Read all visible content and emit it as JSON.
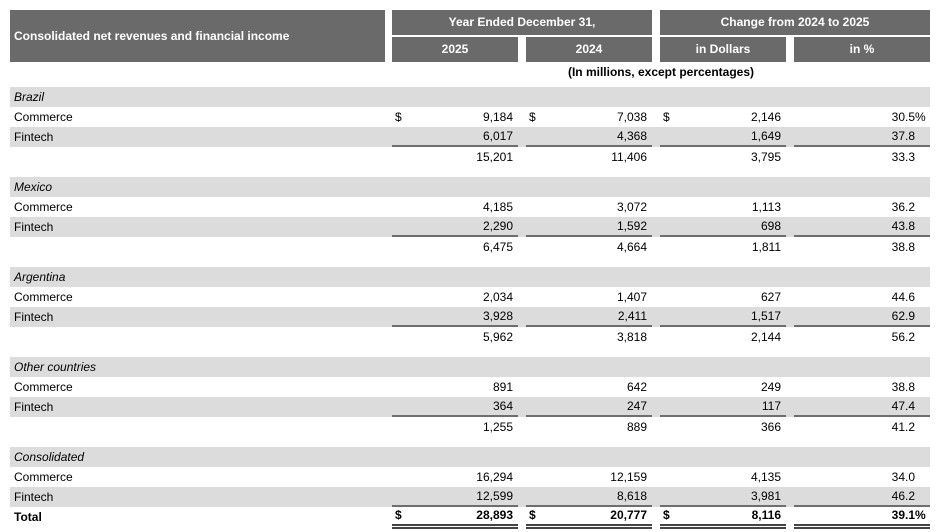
{
  "table": {
    "title": "Consolidated net revenues and financial income",
    "subtitle": "(In millions, except percentages)",
    "col_groups": [
      {
        "label": "Year Ended December 31,",
        "cols": [
          "2025",
          "2024"
        ]
      },
      {
        "label": "Change from 2024 to 2025",
        "cols": [
          "in Dollars",
          "in %"
        ]
      }
    ],
    "sections": [
      {
        "name": "Brazil",
        "rows": [
          {
            "label": "Commerce",
            "cur": "$",
            "v2025": "9,184",
            "v2024": "7,038",
            "chg": "2,146",
            "pct": "30.5",
            "pctsign": "%"
          },
          {
            "label": "Fintech",
            "v2025": "6,017",
            "v2024": "4,368",
            "chg": "1,649",
            "pct": "37.8"
          }
        ],
        "subtotal": {
          "v2025": "15,201",
          "v2024": "11,406",
          "chg": "3,795",
          "pct": "33.3"
        }
      },
      {
        "name": "Mexico",
        "rows": [
          {
            "label": "Commerce",
            "v2025": "4,185",
            "v2024": "3,072",
            "chg": "1,113",
            "pct": "36.2"
          },
          {
            "label": "Fintech",
            "v2025": "2,290",
            "v2024": "1,592",
            "chg": "698",
            "pct": "43.8"
          }
        ],
        "subtotal": {
          "v2025": "6,475",
          "v2024": "4,664",
          "chg": "1,811",
          "pct": "38.8"
        }
      },
      {
        "name": "Argentina",
        "rows": [
          {
            "label": "Commerce",
            "v2025": "2,034",
            "v2024": "1,407",
            "chg": "627",
            "pct": "44.6"
          },
          {
            "label": "Fintech",
            "v2025": "3,928",
            "v2024": "2,411",
            "chg": "1,517",
            "pct": "62.9"
          }
        ],
        "subtotal": {
          "v2025": "5,962",
          "v2024": "3,818",
          "chg": "2,144",
          "pct": "56.2"
        }
      },
      {
        "name": "Other countries",
        "rows": [
          {
            "label": "Commerce",
            "v2025": "891",
            "v2024": "642",
            "chg": "249",
            "pct": "38.8"
          },
          {
            "label": "Fintech",
            "v2025": "364",
            "v2024": "247",
            "chg": "117",
            "pct": "47.4"
          }
        ],
        "subtotal": {
          "v2025": "1,255",
          "v2024": "889",
          "chg": "366",
          "pct": "41.2"
        }
      },
      {
        "name": "Consolidated",
        "rows": [
          {
            "label": "Commerce",
            "v2025": "16,294",
            "v2024": "12,159",
            "chg": "4,135",
            "pct": "34.0"
          },
          {
            "label": "Fintech",
            "v2025": "12,599",
            "v2024": "8,618",
            "chg": "3,981",
            "pct": "46.2"
          }
        ]
      }
    ],
    "total": {
      "label": "Total",
      "cur": "$",
      "v2025": "28,893",
      "v2024": "20,777",
      "chg": "8,116",
      "pct": "39.1",
      "pctsign": "%"
    },
    "colors": {
      "header_bg": "#6a6a6a",
      "stripe_bg": "#dcdcdc",
      "rule": "#6e6e6e",
      "total_rule": "#454545"
    }
  }
}
